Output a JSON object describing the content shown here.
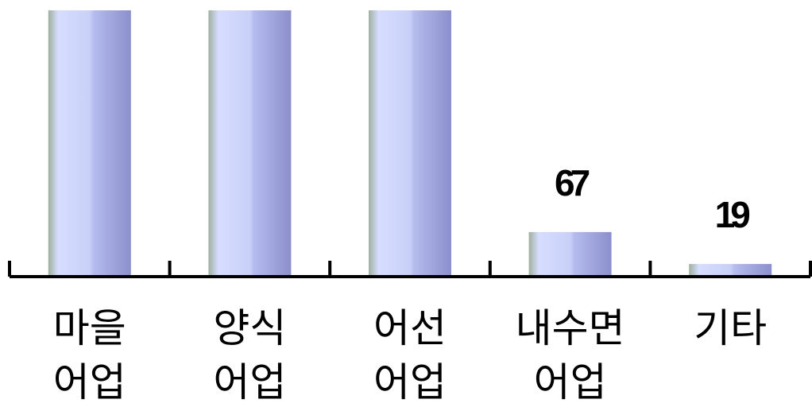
{
  "chart_data": {
    "type": "bar",
    "categories": [
      [
        "마을",
        "어업"
      ],
      [
        "양식",
        "어업"
      ],
      [
        "어선",
        "어업"
      ],
      [
        "내수면",
        "어업"
      ],
      [
        "기타"
      ]
    ],
    "values": [
      400,
      400,
      400,
      67,
      19
    ],
    "data_labels": [
      "",
      "",
      "",
      "67",
      "19"
    ],
    "title": "",
    "xlabel": "",
    "ylabel": "",
    "ylim": [
      0,
      400
    ],
    "grid": false,
    "legend": "none",
    "colors": {
      "bar_light": "#d6ddff",
      "bar_dark": "#8b8fcc",
      "bar_edge": "#a8b3a8",
      "axis": "#000000"
    }
  }
}
